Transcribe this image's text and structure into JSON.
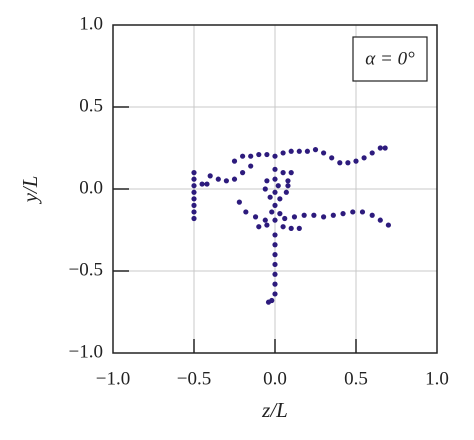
{
  "chart_data": {
    "type": "scatter",
    "annotation": "α = 0°",
    "xlabel": "z/L",
    "ylabel": "y/L",
    "xlim": [
      -1,
      1
    ],
    "ylim": [
      -1,
      1
    ],
    "xticks": [
      {
        "value": -1,
        "label": "−1.0"
      },
      {
        "value": -0.5,
        "label": "−0.5"
      },
      {
        "value": 0,
        "label": "0.0"
      },
      0.5,
      {
        "value": 1,
        "label": "1.0"
      }
    ],
    "yticks": [
      {
        "value": -1,
        "label": "−1.0"
      },
      {
        "value": -0.5,
        "label": "−0.5"
      },
      {
        "value": 0,
        "label": "0.0"
      },
      0.5,
      {
        "value": 1,
        "label": "1.0"
      }
    ],
    "grid": true,
    "color": "#2d1b7d",
    "x": [
      -0.25,
      -0.2,
      -0.15,
      -0.1,
      -0.05,
      0.0,
      0.05,
      0.1,
      0.15,
      0.2,
      0.25,
      0.3,
      0.35,
      0.4,
      0.45,
      0.5,
      0.55,
      0.6,
      0.65,
      0.68,
      -0.4,
      -0.35,
      -0.3,
      -0.25,
      -0.2,
      -0.15,
      -0.5,
      -0.5,
      -0.5,
      -0.5,
      -0.5,
      -0.5,
      -0.5,
      -0.5,
      -0.45,
      -0.42,
      0.0,
      0.05,
      0.08,
      0.07,
      0.03,
      -0.03,
      -0.06,
      -0.05,
      0.0,
      0.02,
      0.0,
      0.0,
      -0.02,
      0.03,
      0.08,
      0.1,
      -0.22,
      -0.18,
      -0.12,
      -0.06,
      0.0,
      0.06,
      0.12,
      0.18,
      0.24,
      0.3,
      0.36,
      0.42,
      0.48,
      0.54,
      0.6,
      0.65,
      0.7,
      -0.1,
      -0.05,
      0.05,
      0.1,
      0.15,
      0.0,
      0.0,
      0.0,
      0.0,
      0.0,
      0.0,
      0.0,
      -0.02,
      -0.04
    ],
    "y": [
      0.17,
      0.2,
      0.2,
      0.21,
      0.21,
      0.2,
      0.22,
      0.23,
      0.23,
      0.23,
      0.24,
      0.22,
      0.19,
      0.16,
      0.16,
      0.17,
      0.19,
      0.22,
      0.25,
      0.25,
      0.08,
      0.06,
      0.05,
      0.06,
      0.1,
      0.14,
      0.1,
      0.06,
      0.02,
      -0.02,
      -0.06,
      -0.1,
      -0.14,
      -0.18,
      0.03,
      0.03,
      0.12,
      0.1,
      0.05,
      -0.02,
      -0.06,
      -0.05,
      0.0,
      0.05,
      0.06,
      0.02,
      -0.02,
      -0.1,
      -0.14,
      -0.15,
      0.02,
      0.1,
      -0.08,
      -0.14,
      -0.17,
      -0.19,
      -0.19,
      -0.18,
      -0.17,
      -0.16,
      -0.16,
      -0.17,
      -0.16,
      -0.15,
      -0.14,
      -0.14,
      -0.16,
      -0.19,
      -0.22,
      -0.23,
      -0.22,
      -0.23,
      -0.24,
      -0.24,
      -0.28,
      -0.34,
      -0.4,
      -0.46,
      -0.52,
      -0.58,
      -0.64,
      -0.68,
      -0.69
    ]
  }
}
